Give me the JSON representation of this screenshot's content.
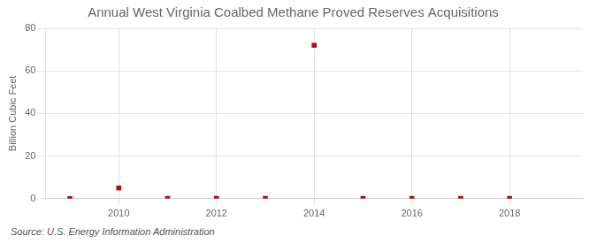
{
  "chart_data": {
    "type": "scatter",
    "title": "Annual West Virginia Coalbed Methane Proved Reserves Acquisitions",
    "y_label": "Billion Cubic Feet",
    "source": "Source: U.S. Energy Information Administration",
    "x": [
      2009,
      2010,
      2011,
      2012,
      2013,
      2014,
      2015,
      2016,
      2017,
      2018
    ],
    "values": [
      0.0,
      5.0,
      0.05,
      0.05,
      0.05,
      72.0,
      0.05,
      0.05,
      0.05,
      0.05
    ],
    "color": "#aa1111",
    "marker": "square",
    "xlim": [
      2008.5,
      2019.5
    ],
    "xticks": [
      2010,
      2012,
      2014,
      2016,
      2018
    ],
    "ylim": [
      0,
      80
    ],
    "yticks": [
      0,
      20,
      40,
      60,
      80
    ],
    "grid": true
  }
}
